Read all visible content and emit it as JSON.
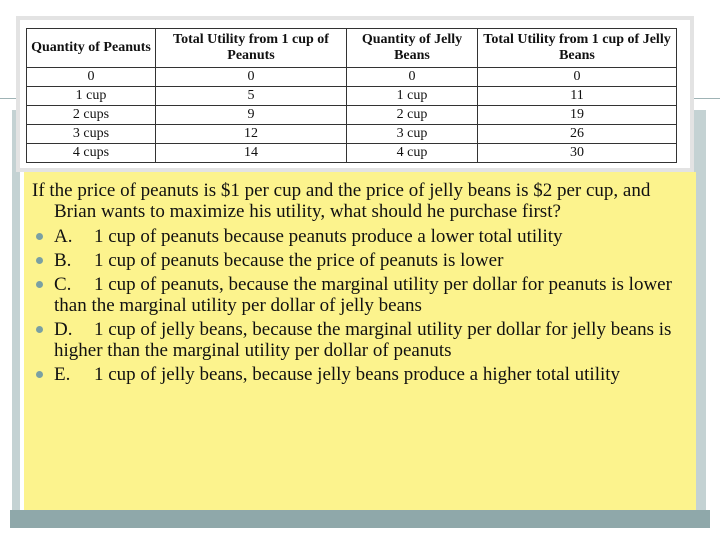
{
  "table": {
    "headers": [
      "Quantity of Peanuts",
      "Total Utility from 1 cup of Peanuts",
      "Quantity of Jelly Beans",
      "Total Utility from 1 cup of Jelly Beans"
    ],
    "rows": [
      [
        "0",
        "0",
        "0",
        "0"
      ],
      [
        "1 cup",
        "5",
        "1 cup",
        "11"
      ],
      [
        "2 cups",
        "9",
        "2 cup",
        "19"
      ],
      [
        "3 cups",
        "12",
        "3 cup",
        "26"
      ],
      [
        "4 cups",
        "14",
        "4 cup",
        "30"
      ]
    ]
  },
  "question": "If the price of peanuts is $1 per cup and the price of jelly beans is $2 per cup, and Brian wants to maximize his utility, what should he purchase first?",
  "options": [
    {
      "letter": "A.",
      "text": "1 cup of peanuts because peanuts produce a lower total utility"
    },
    {
      "letter": "B.",
      "text": "1 cup of peanuts because the price of peanuts is lower"
    },
    {
      "letter": "C.",
      "text": "1 cup of peanuts, because the marginal utility per dollar for peanuts is lower than the marginal utility per dollar of jelly beans"
    },
    {
      "letter": "D.",
      "text": "1 cup of jelly beans, because the marginal utility per dollar for jelly beans is higher than the marginal utility per dollar of peanuts"
    },
    {
      "letter": "E.",
      "text": "1 cup of jelly beans, because jelly beans produce a higher total utility"
    }
  ],
  "colors": {
    "question_background": "#fcf38d",
    "bullet": "#7aa0a3",
    "accent_bar": "#8fa8aa"
  }
}
